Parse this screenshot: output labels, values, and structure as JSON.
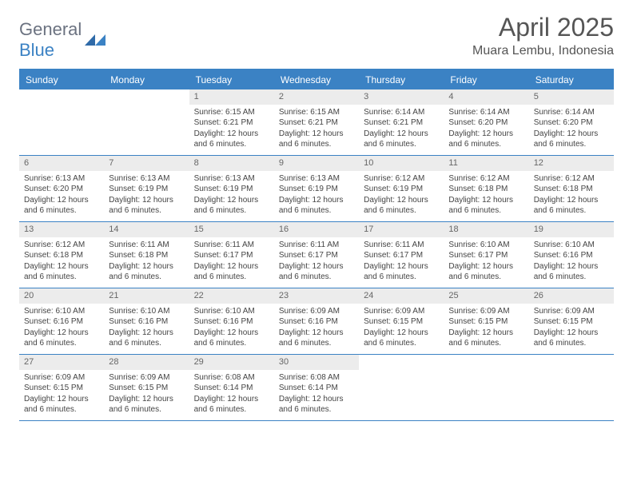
{
  "logo": {
    "text_a": "General",
    "text_b": "Blue",
    "color_gray": "#6b7280",
    "color_blue": "#3b82c4"
  },
  "title": "April 2025",
  "location": "Muara Lembu, Indonesia",
  "colors": {
    "header_bg": "#3b82c4",
    "header_text": "#ffffff",
    "daynum_bg": "#ececec",
    "daynum_text": "#666666",
    "body_text": "#444444",
    "rule": "#3b82c4",
    "page_bg": "#ffffff"
  },
  "typography": {
    "title_fontsize": 32,
    "location_fontsize": 16,
    "weekday_fontsize": 12,
    "daynum_fontsize": 11,
    "body_fontsize": 10
  },
  "weekdays": [
    "Sunday",
    "Monday",
    "Tuesday",
    "Wednesday",
    "Thursday",
    "Friday",
    "Saturday"
  ],
  "weeks": [
    [
      {
        "n": "",
        "lines": []
      },
      {
        "n": "",
        "lines": []
      },
      {
        "n": "1",
        "lines": [
          "Sunrise: 6:15 AM",
          "Sunset: 6:21 PM",
          "Daylight: 12 hours",
          "and 6 minutes."
        ]
      },
      {
        "n": "2",
        "lines": [
          "Sunrise: 6:15 AM",
          "Sunset: 6:21 PM",
          "Daylight: 12 hours",
          "and 6 minutes."
        ]
      },
      {
        "n": "3",
        "lines": [
          "Sunrise: 6:14 AM",
          "Sunset: 6:21 PM",
          "Daylight: 12 hours",
          "and 6 minutes."
        ]
      },
      {
        "n": "4",
        "lines": [
          "Sunrise: 6:14 AM",
          "Sunset: 6:20 PM",
          "Daylight: 12 hours",
          "and 6 minutes."
        ]
      },
      {
        "n": "5",
        "lines": [
          "Sunrise: 6:14 AM",
          "Sunset: 6:20 PM",
          "Daylight: 12 hours",
          "and 6 minutes."
        ]
      }
    ],
    [
      {
        "n": "6",
        "lines": [
          "Sunrise: 6:13 AM",
          "Sunset: 6:20 PM",
          "Daylight: 12 hours",
          "and 6 minutes."
        ]
      },
      {
        "n": "7",
        "lines": [
          "Sunrise: 6:13 AM",
          "Sunset: 6:19 PM",
          "Daylight: 12 hours",
          "and 6 minutes."
        ]
      },
      {
        "n": "8",
        "lines": [
          "Sunrise: 6:13 AM",
          "Sunset: 6:19 PM",
          "Daylight: 12 hours",
          "and 6 minutes."
        ]
      },
      {
        "n": "9",
        "lines": [
          "Sunrise: 6:13 AM",
          "Sunset: 6:19 PM",
          "Daylight: 12 hours",
          "and 6 minutes."
        ]
      },
      {
        "n": "10",
        "lines": [
          "Sunrise: 6:12 AM",
          "Sunset: 6:19 PM",
          "Daylight: 12 hours",
          "and 6 minutes."
        ]
      },
      {
        "n": "11",
        "lines": [
          "Sunrise: 6:12 AM",
          "Sunset: 6:18 PM",
          "Daylight: 12 hours",
          "and 6 minutes."
        ]
      },
      {
        "n": "12",
        "lines": [
          "Sunrise: 6:12 AM",
          "Sunset: 6:18 PM",
          "Daylight: 12 hours",
          "and 6 minutes."
        ]
      }
    ],
    [
      {
        "n": "13",
        "lines": [
          "Sunrise: 6:12 AM",
          "Sunset: 6:18 PM",
          "Daylight: 12 hours",
          "and 6 minutes."
        ]
      },
      {
        "n": "14",
        "lines": [
          "Sunrise: 6:11 AM",
          "Sunset: 6:18 PM",
          "Daylight: 12 hours",
          "and 6 minutes."
        ]
      },
      {
        "n": "15",
        "lines": [
          "Sunrise: 6:11 AM",
          "Sunset: 6:17 PM",
          "Daylight: 12 hours",
          "and 6 minutes."
        ]
      },
      {
        "n": "16",
        "lines": [
          "Sunrise: 6:11 AM",
          "Sunset: 6:17 PM",
          "Daylight: 12 hours",
          "and 6 minutes."
        ]
      },
      {
        "n": "17",
        "lines": [
          "Sunrise: 6:11 AM",
          "Sunset: 6:17 PM",
          "Daylight: 12 hours",
          "and 6 minutes."
        ]
      },
      {
        "n": "18",
        "lines": [
          "Sunrise: 6:10 AM",
          "Sunset: 6:17 PM",
          "Daylight: 12 hours",
          "and 6 minutes."
        ]
      },
      {
        "n": "19",
        "lines": [
          "Sunrise: 6:10 AM",
          "Sunset: 6:16 PM",
          "Daylight: 12 hours",
          "and 6 minutes."
        ]
      }
    ],
    [
      {
        "n": "20",
        "lines": [
          "Sunrise: 6:10 AM",
          "Sunset: 6:16 PM",
          "Daylight: 12 hours",
          "and 6 minutes."
        ]
      },
      {
        "n": "21",
        "lines": [
          "Sunrise: 6:10 AM",
          "Sunset: 6:16 PM",
          "Daylight: 12 hours",
          "and 6 minutes."
        ]
      },
      {
        "n": "22",
        "lines": [
          "Sunrise: 6:10 AM",
          "Sunset: 6:16 PM",
          "Daylight: 12 hours",
          "and 6 minutes."
        ]
      },
      {
        "n": "23",
        "lines": [
          "Sunrise: 6:09 AM",
          "Sunset: 6:16 PM",
          "Daylight: 12 hours",
          "and 6 minutes."
        ]
      },
      {
        "n": "24",
        "lines": [
          "Sunrise: 6:09 AM",
          "Sunset: 6:15 PM",
          "Daylight: 12 hours",
          "and 6 minutes."
        ]
      },
      {
        "n": "25",
        "lines": [
          "Sunrise: 6:09 AM",
          "Sunset: 6:15 PM",
          "Daylight: 12 hours",
          "and 6 minutes."
        ]
      },
      {
        "n": "26",
        "lines": [
          "Sunrise: 6:09 AM",
          "Sunset: 6:15 PM",
          "Daylight: 12 hours",
          "and 6 minutes."
        ]
      }
    ],
    [
      {
        "n": "27",
        "lines": [
          "Sunrise: 6:09 AM",
          "Sunset: 6:15 PM",
          "Daylight: 12 hours",
          "and 6 minutes."
        ]
      },
      {
        "n": "28",
        "lines": [
          "Sunrise: 6:09 AM",
          "Sunset: 6:15 PM",
          "Daylight: 12 hours",
          "and 6 minutes."
        ]
      },
      {
        "n": "29",
        "lines": [
          "Sunrise: 6:08 AM",
          "Sunset: 6:14 PM",
          "Daylight: 12 hours",
          "and 6 minutes."
        ]
      },
      {
        "n": "30",
        "lines": [
          "Sunrise: 6:08 AM",
          "Sunset: 6:14 PM",
          "Daylight: 12 hours",
          "and 6 minutes."
        ]
      },
      {
        "n": "",
        "lines": []
      },
      {
        "n": "",
        "lines": []
      },
      {
        "n": "",
        "lines": []
      }
    ]
  ]
}
